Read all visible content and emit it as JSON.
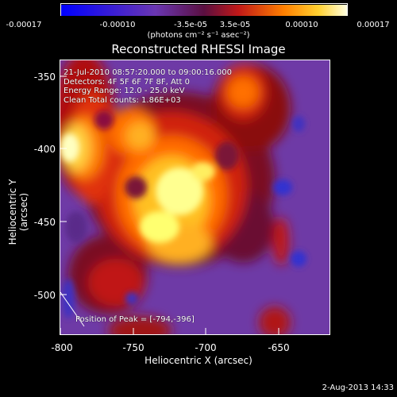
{
  "colorbar": {
    "tick_labels": [
      "-0.00017",
      "-0.00010",
      "-3.5e-05",
      "3.5e-05",
      "0.00010",
      "0.00017"
    ],
    "units": "(photons cm⁻² s⁻¹ asec⁻²)",
    "range": [
      -0.00017,
      0.00017
    ]
  },
  "plot": {
    "title": "Reconstructed RHESSI Image",
    "annotations": [
      "21-Jul-2010 08:57:20.000 to 09:00:16.000",
      "Detectors: 4F 5F 6F 7F 8F, Att 0",
      "Energy Range: 12.0 - 25.0 keV",
      "Clean    Total counts: 1.86E+03"
    ],
    "peak_label": "Position of Peak = [-794,-396]",
    "x_axis": {
      "title": "Heliocentric X (arcsec)",
      "ticks": [
        "-800",
        "-750",
        "-700",
        "-650"
      ],
      "range": [
        -802,
        -612
      ]
    },
    "y_axis": {
      "title": "Heliocentric Y (arcsec)",
      "ticks": [
        "-350",
        "-400",
        "-450",
        "-500"
      ],
      "range": [
        -530,
        -330
      ]
    }
  },
  "footer": {
    "datestamp": "2-Aug-2013 14:33"
  }
}
